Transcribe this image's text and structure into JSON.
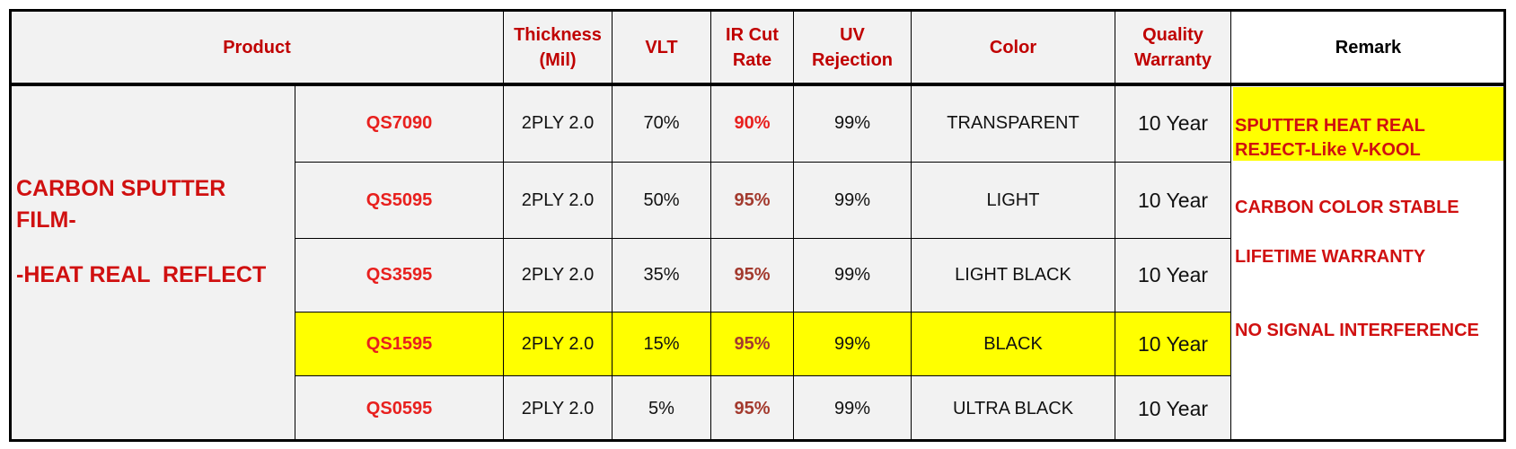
{
  "header": [
    "Product",
    "Thickness (Mil)",
    "VLT",
    "IR Cut Rate",
    "UV Rejection",
    "Color",
    "Quality Warranty",
    "Remark"
  ],
  "group": {
    "line1": "CARBON SPUTTER FILM-",
    "line2": "-HEAT REAL  REFLECT"
  },
  "rows": [
    [
      "QS7090",
      "2PLY 2.0",
      "70%",
      "90%",
      "99%",
      "TRANSPARENT",
      "10 Year"
    ],
    [
      "QS5095",
      "2PLY 2.0",
      "50%",
      "95%",
      "99%",
      "LIGHT",
      "10 Year"
    ],
    [
      "QS3595",
      "2PLY 2.0",
      "35%",
      "95%",
      "99%",
      "LIGHT BLACK",
      "10 Year"
    ],
    [
      "QS1595",
      "2PLY 2.0",
      "15%",
      "95%",
      "99%",
      "BLACK",
      "10 Year"
    ],
    [
      "QS0595",
      "2PLY 2.0",
      "5%",
      "95%",
      "99%",
      "ULTRA BLACK",
      "10 Year"
    ]
  ],
  "remarks": [
    "SPUTTER HEAT REAL REJECT-Like V-KOOL",
    "CARBON COLOR STABLE",
    "LIFETIME WARRANTY",
    "NO SIGNAL INTERFERENCE"
  ]
}
